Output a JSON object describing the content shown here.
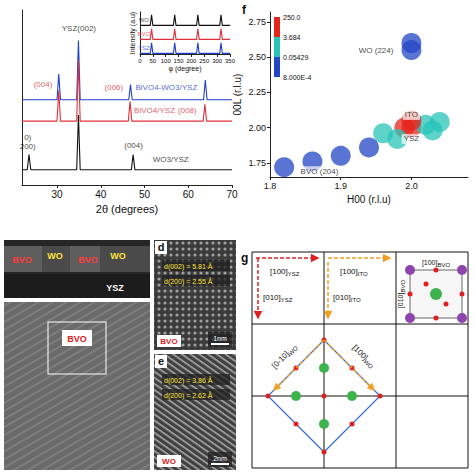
{
  "chart_data": [
    {
      "type": "line",
      "xlabel": "2θ (degrees)",
      "xlim": [
        22,
        70
      ],
      "xticks": [
        30,
        40,
        50,
        60,
        70
      ],
      "ylim": [
        0,
        11.5
      ],
      "yticks": [],
      "tick_labels": "x",
      "grid": false,
      "series": [
        {
          "color": "#1f3fd1",
          "x": [
            22,
            30.0,
            30.4,
            30.8,
            34.5,
            34.9,
            35.3,
            46.4,
            46.8,
            47.2,
            63.5,
            63.9,
            64.3,
            70
          ],
          "values": [
            5.6,
            5.6,
            7.3,
            5.6,
            5.6,
            9.5,
            5.6,
            5.6,
            6.6,
            5.6,
            5.6,
            6.9,
            5.6,
            5.6
          ]
        },
        {
          "color": "#e0303a",
          "x": [
            22,
            30.0,
            30.4,
            30.8,
            34.5,
            34.9,
            35.3,
            46.3,
            46.7,
            47.1,
            63.4,
            63.8,
            64.2,
            70
          ],
          "values": [
            4.2,
            4.2,
            6.2,
            4.2,
            4.2,
            8.2,
            4.2,
            4.2,
            5.5,
            4.2,
            4.2,
            5.3,
            4.2,
            4.2
          ]
        },
        {
          "color": "#111111",
          "x": [
            22,
            23.2,
            23.6,
            24.0,
            34.5,
            34.9,
            35.3,
            47.0,
            47.4,
            47.8,
            70
          ],
          "values": [
            1.0,
            1.0,
            2.0,
            1.0,
            1.0,
            4.6,
            1.0,
            1.0,
            2.0,
            1.0,
            1.0
          ]
        }
      ],
      "annotations": [
        {
          "text": "YSZ(002)",
          "x": 35,
          "y": 10.3,
          "color": "#111111"
        },
        {
          "text": "(004)",
          "x": 26.8,
          "y": 6.6,
          "color": "#e0303a"
        },
        {
          "text": "(006)",
          "x": 43,
          "y": 6.4,
          "color": "#e0303a"
        },
        {
          "text": "(008)",
          "x": 59.8,
          "y": 4.9,
          "color": "#e0303a"
        },
        {
          "text": "(004)",
          "x": 47.5,
          "y": 2.6,
          "color": "#111111"
        },
        {
          "text": "BiVO4-WO3/YSZ",
          "x": 55,
          "y": 6.4,
          "color": "#1f3fd1"
        },
        {
          "text": "BiVO4/YSZ",
          "x": 52.3,
          "y": 4.9,
          "color": "#e0303a"
        },
        {
          "text": "WO3/YSZ",
          "x": 56,
          "y": 1.7,
          "color": "#111111"
        },
        {
          "text": "0)",
          "x": 23.3,
          "y": 3.1,
          "color": "#111111"
        },
        {
          "text": "200)",
          "x": 23.3,
          "y": 2.5,
          "color": "#111111"
        }
      ]
    },
    {
      "type": "line",
      "xlabel": "φ (degree)",
      "ylabel": "Intensity (a.u)",
      "xlim": [
        0,
        350
      ],
      "xticks": [
        0,
        50,
        100,
        150,
        200,
        250,
        300,
        350
      ],
      "ylim": [
        0,
        3.6
      ],
      "yticks": [],
      "tick_labels": "x",
      "grid": false,
      "series": [
        {
          "color": "#111111",
          "x": [
            0,
            40,
            45,
            50,
            130,
            135,
            140,
            220,
            225,
            230,
            310,
            315,
            320,
            350
          ],
          "values": [
            2.45,
            2.45,
            3.35,
            2.45,
            2.45,
            3.35,
            2.45,
            2.45,
            3.35,
            2.45,
            2.45,
            3.35,
            2.45,
            2.45
          ]
        },
        {
          "color": "#e0303a",
          "x": [
            0,
            40,
            45,
            50,
            130,
            135,
            140,
            220,
            225,
            230,
            310,
            315,
            320,
            350
          ],
          "values": [
            1.25,
            1.25,
            2.15,
            1.25,
            1.25,
            2.15,
            1.25,
            1.25,
            2.15,
            1.25,
            1.25,
            2.15,
            1.25,
            1.25
          ]
        },
        {
          "color": "#1f3fd1",
          "x": [
            0,
            40,
            45,
            50,
            130,
            135,
            140,
            220,
            225,
            230,
            310,
            315,
            320,
            350
          ],
          "values": [
            0.05,
            0.05,
            0.95,
            0.05,
            0.05,
            0.95,
            0.05,
            0.05,
            0.95,
            0.05,
            0.05,
            0.95,
            0.05,
            0.05
          ]
        }
      ],
      "annotations": [
        {
          "text": "WO",
          "x": 15,
          "y": 2.95,
          "color": "#111111"
        },
        {
          "text": "BVO",
          "x": 15,
          "y": 1.75,
          "color": "#e0303a"
        },
        {
          "text": "YSZ",
          "x": 15,
          "y": 0.55,
          "color": "#1f3fd1"
        }
      ]
    },
    {
      "type": "heatmap",
      "panel": "f",
      "xlabel": "H00 (r.l.u)",
      "ylabel": "00L (r.l.u)",
      "xlim": [
        1.8,
        2.08
      ],
      "xticks": [
        1.8,
        1.9,
        {
          "value": 2,
          "label": "2.0"
        }
      ],
      "ylim": [
        1.65,
        2.82
      ],
      "yticks": [
        1.75,
        {
          "value": 2,
          "label": "2.00"
        },
        2.25,
        {
          "value": 2.5,
          "label": "2.50"
        },
        2.75
      ],
      "points": {
        "x": [
          2.0,
          1.99,
          2.02,
          2.0,
          2.03,
          1.96,
          2.04,
          2.0,
          2.0,
          1.82,
          1.86,
          1.9,
          1.94,
          1.98
        ],
        "y": [
          2.0,
          2.0,
          2.02,
          2.05,
          1.98,
          1.96,
          2.04,
          2.55,
          2.6,
          1.72,
          1.76,
          1.8,
          1.86,
          1.92
        ],
        "values": [
          250,
          20,
          3,
          5,
          1,
          0.2,
          0.2,
          0.01,
          0.005,
          0.01,
          0.01,
          0.02,
          0.05,
          0.1
        ]
      },
      "colorbar": {
        "range": [
          0.0008,
          250
        ],
        "ticks": [
          {
            "value": 250,
            "label": "250.0"
          },
          3.684,
          0.05429,
          {
            "value": 0.0008,
            "label": "8.000E-4"
          }
        ],
        "colors": [
          "#e4261c",
          "#27c4b8",
          "#2346c6"
        ]
      },
      "annotations": [
        {
          "text": "WO (224)",
          "x": 1.95,
          "y": 2.55,
          "color": "#111111"
        },
        {
          "text": "ITO",
          "x": 2.0,
          "y": 2.09,
          "color": "#111111"
        },
        {
          "text": "YSZ",
          "x": 2.0,
          "y": 1.92,
          "color": "#111111"
        },
        {
          "text": "BVO (204)",
          "x": 1.87,
          "y": 1.69,
          "color": "#111111"
        }
      ]
    }
  ],
  "panels": {
    "cross_section": {
      "labels": [
        "BVO",
        "WO",
        "BVO",
        "WO",
        "YSZ"
      ]
    },
    "overview": {
      "label": "BVO"
    },
    "hrtem": [
      {
        "letter": "d",
        "spacings": [
          "d(002) = 5.81 Å",
          "d(200) = 2.55 Å"
        ],
        "phase": "BVO",
        "scale": "1nm"
      },
      {
        "letter": "e",
        "spacings": [
          "d(002) = 3.86 Å",
          "d(200) = 2.62 Å"
        ],
        "phase": "WO",
        "scale": "2nm"
      }
    ],
    "diagram": {
      "letter": "g",
      "directions": [
        {
          "text": "[100]",
          "sub": "YSZ"
        },
        {
          "text": "[100]",
          "sub": "ITO"
        },
        {
          "text": "[010]",
          "sub": "YSZ"
        },
        {
          "text": "[010]",
          "sub": "ITO"
        },
        {
          "text": "[100]",
          "sub": "BVO"
        },
        {
          "text": "[010]",
          "sub": "BVO"
        },
        {
          "text": "[0-10]",
          "sub": "WO"
        },
        {
          "text": "[100]",
          "sub": "WO"
        }
      ]
    }
  }
}
